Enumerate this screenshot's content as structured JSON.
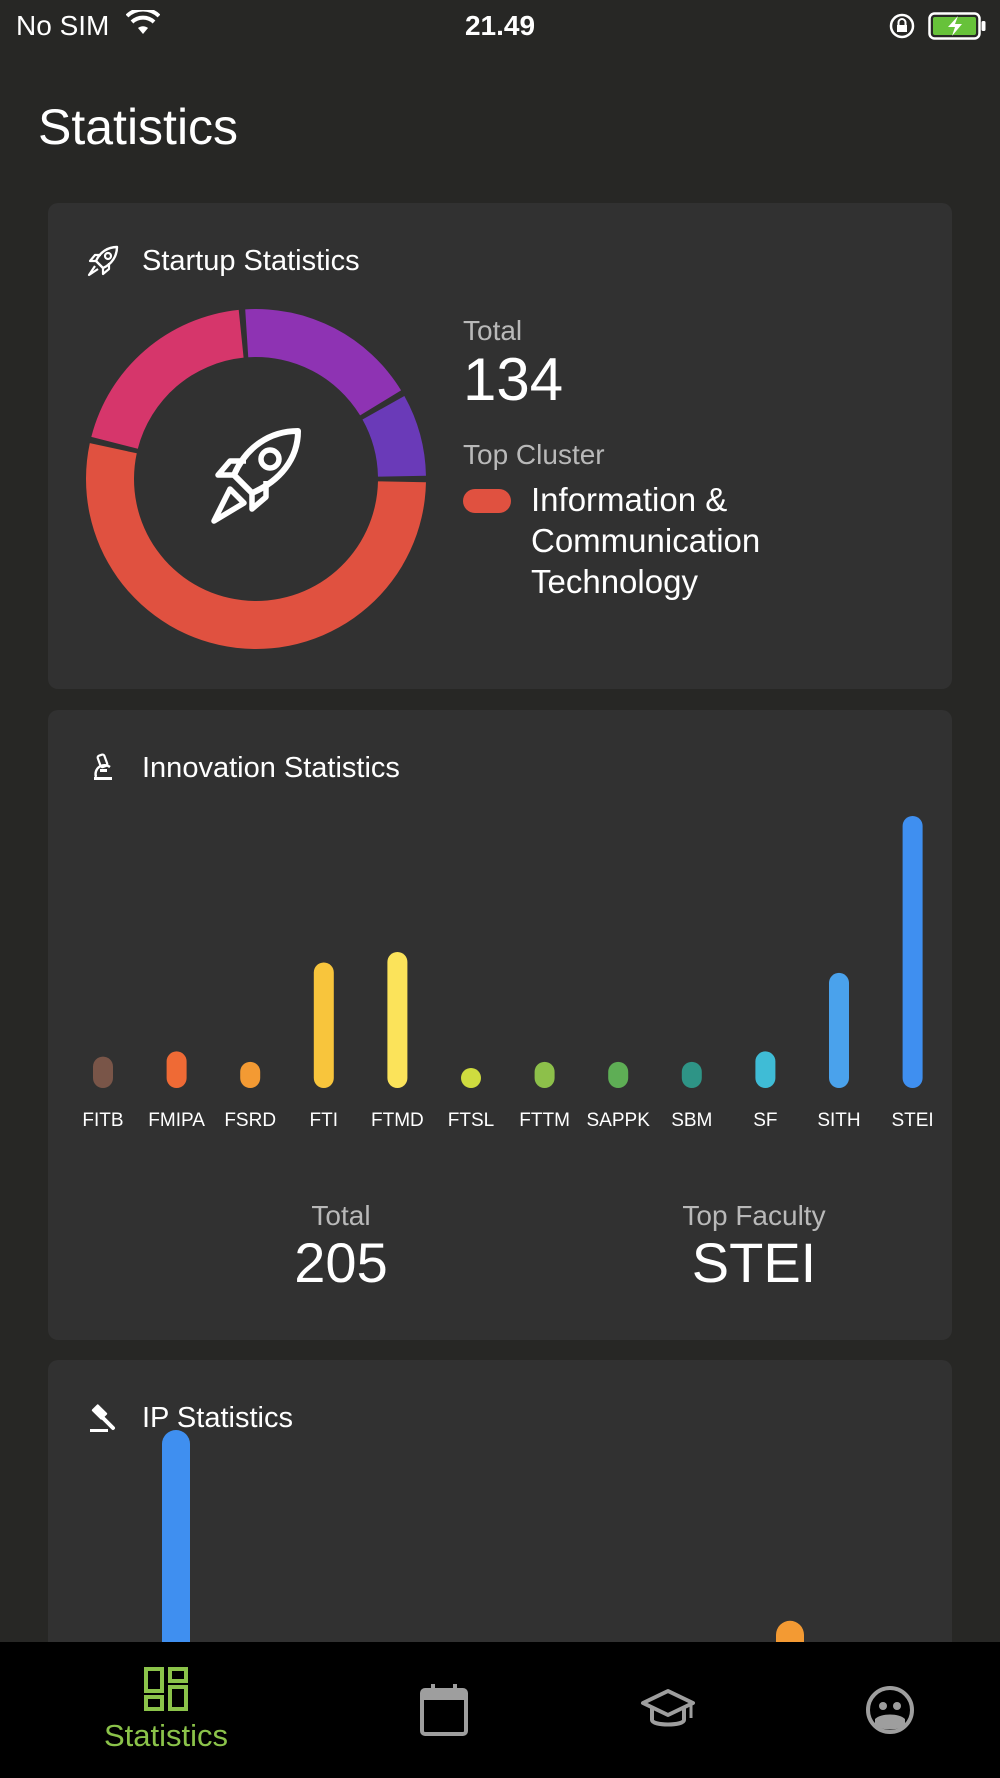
{
  "status_bar": {
    "carrier": "No SIM",
    "time": "21.49"
  },
  "page": {
    "title": "Statistics"
  },
  "startup": {
    "title": "Startup Statistics",
    "icon": "rocket-icon",
    "total_label": "Total",
    "total_value": "134",
    "top_cluster_label": "Top Cluster",
    "top_cluster_name": "Information & Communication Technology",
    "top_cluster_color": "#e05140",
    "chart_data": {
      "type": "pie",
      "donut": true,
      "slices": [
        {
          "value": 51,
          "color": "#e05140"
        },
        {
          "value": 19,
          "color": "#d6366b"
        },
        {
          "value": 17,
          "color": "#8e33b3"
        },
        {
          "value": 8,
          "color": "#6a3ab8"
        }
      ]
    }
  },
  "innovation": {
    "title": "Innovation Statistics",
    "icon": "microscope-icon",
    "total_label": "Total",
    "total_value": "205",
    "top_faculty_label": "Top Faculty",
    "top_faculty_value": "STEI",
    "chart_data": {
      "type": "bar",
      "categories": [
        "FITB",
        "FMIPA",
        "FSRD",
        "FTI",
        "FTMD",
        "FTSL",
        "FTTM",
        "SAPPK",
        "SBM",
        "SF",
        "SITH",
        "STEI"
      ],
      "values": [
        6,
        7,
        5,
        24,
        26,
        3,
        5,
        5,
        5,
        7,
        22,
        52
      ],
      "colors": [
        "#795548",
        "#ef6a35",
        "#f39a33",
        "#f8c53c",
        "#fbe35a",
        "#cfdc3f",
        "#8dc04a",
        "#5eae55",
        "#2e9486",
        "#3fbcd6",
        "#4aa2ec",
        "#3f8ff0"
      ],
      "ylim": [
        0,
        52
      ]
    }
  },
  "ip": {
    "title": "IP Statistics",
    "icon": "gavel-icon",
    "chart_data": {
      "type": "bar",
      "categories": [
        "",
        ""
      ],
      "values": [
        100,
        10
      ],
      "colors": [
        "#3f8ff0",
        "#f39a33"
      ],
      "partial": true
    }
  },
  "nav": {
    "items": [
      {
        "label": "Statistics",
        "icon": "dashboard-icon",
        "active": true
      },
      {
        "label": "",
        "icon": "calendar-icon",
        "active": false
      },
      {
        "label": "",
        "icon": "graduation-cap-icon",
        "active": false
      },
      {
        "label": "",
        "icon": "face-icon",
        "active": false
      }
    ],
    "active_color": "#8bc34a",
    "inactive_color": "#9e9e9e"
  }
}
